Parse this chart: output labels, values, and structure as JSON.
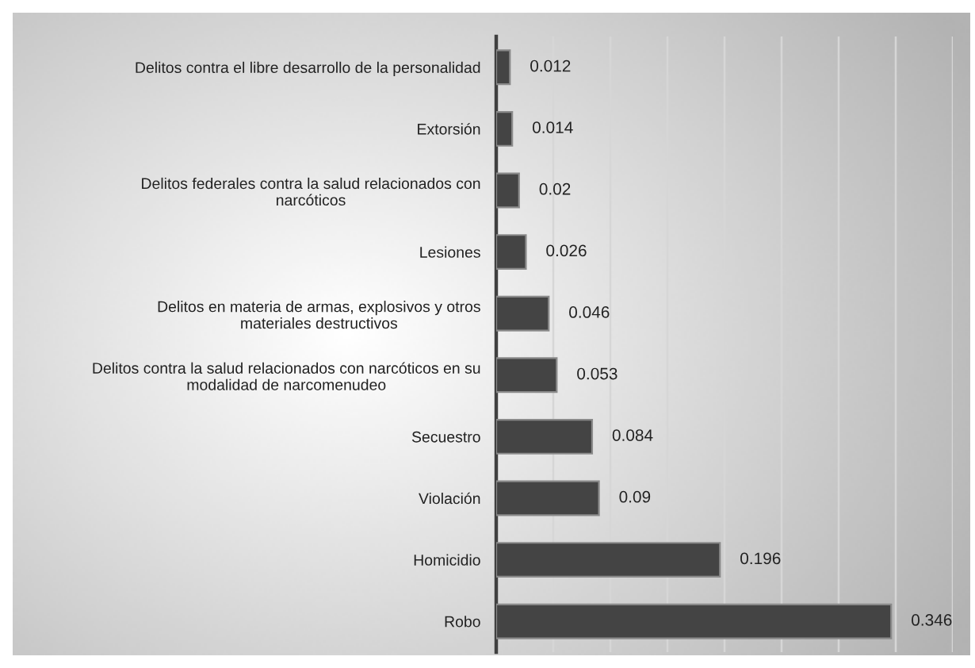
{
  "chart_data": {
    "type": "bar",
    "orientation": "horizontal",
    "categories": [
      "Delitos contra el libre desarrollo de la personalidad",
      "Extorsión",
      "Delitos federales contra la salud relacionados con\nnarcóticos",
      "Lesiones",
      "Delitos en materia de armas, explosivos y otros\nmateriales destructivos",
      "Delitos contra la salud relacionados con narcóticos en su\nmodalidad de narcomenudeo",
      "Secuestro",
      "Violación",
      "Homicidio",
      "Robo"
    ],
    "values": [
      0.012,
      0.014,
      0.02,
      0.026,
      0.046,
      0.053,
      0.084,
      0.09,
      0.196,
      0.346
    ],
    "color": "#444444",
    "xlim": [
      0,
      0.4
    ],
    "xticks": [
      {
        "value": 0.05,
        "label": null
      },
      {
        "value": 0.1,
        "label": null
      },
      {
        "value": 0.15,
        "label": null
      },
      {
        "value": 0.2,
        "label": null
      },
      {
        "value": 0.25,
        "label": null
      },
      {
        "value": 0.3,
        "label": null
      },
      {
        "value": 0.35,
        "label": null
      },
      {
        "value": 0.4,
        "label": null
      }
    ],
    "grid": "x",
    "tick_labels": "y",
    "data_labels": true
  }
}
